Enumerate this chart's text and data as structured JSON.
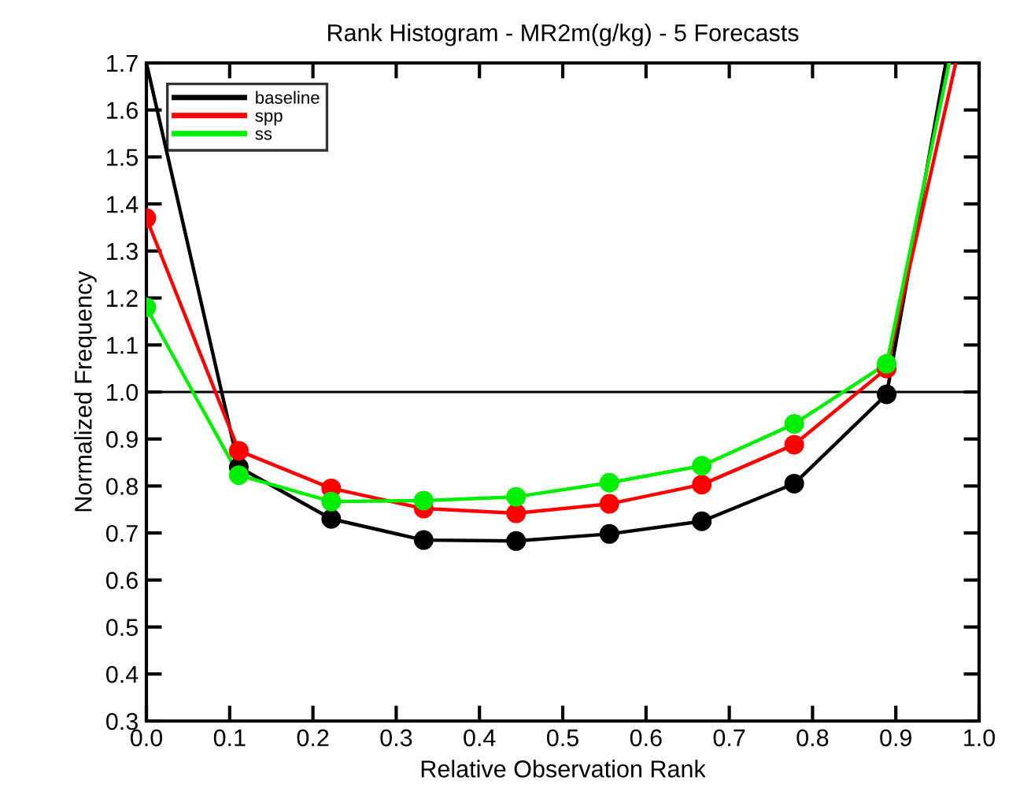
{
  "chart_data": {
    "type": "line",
    "title": "Rank Histogram - MR2m(g/kg) - 5 Forecasts",
    "xlabel": "Relative Observation Rank",
    "ylabel": "Normalized Frequency",
    "series": [
      {
        "name": "baseline",
        "color": "#000000",
        "x": [
          0.0,
          0.111,
          0.222,
          0.333,
          0.444,
          0.556,
          0.667,
          0.778,
          0.889,
          0.96
        ],
        "values": [
          1.7,
          0.84,
          0.73,
          0.685,
          0.683,
          0.698,
          0.725,
          0.805,
          0.995,
          1.7
        ]
      },
      {
        "name": "spp",
        "color": "#ff0000",
        "x": [
          0.0,
          0.111,
          0.222,
          0.333,
          0.444,
          0.556,
          0.667,
          0.778,
          0.889,
          0.972
        ],
        "values": [
          1.37,
          0.875,
          0.795,
          0.752,
          0.742,
          0.762,
          0.803,
          0.888,
          1.05,
          1.7
        ]
      },
      {
        "name": "ss",
        "color": "#00ee00",
        "x": [
          0.0,
          0.111,
          0.222,
          0.333,
          0.444,
          0.556,
          0.667,
          0.778,
          0.889,
          0.964
        ],
        "values": [
          1.18,
          0.823,
          0.767,
          0.769,
          0.777,
          0.807,
          0.843,
          0.932,
          1.06,
          1.7
        ]
      }
    ],
    "xlim": [
      0.0,
      1.0
    ],
    "xticks": [
      {
        "value": 0,
        "label": "0.0"
      },
      0.1,
      0.2,
      0.3,
      0.4,
      0.5,
      0.6,
      0.7,
      0.8,
      0.9,
      {
        "value": 1,
        "label": "1.0"
      }
    ],
    "ylim": [
      0.3,
      1.7
    ],
    "yticks": [
      0.3,
      0.4,
      0.5,
      0.6,
      0.7,
      0.8,
      0.9,
      {
        "value": 1,
        "label": "1.0"
      },
      1.1,
      1.2,
      1.3,
      1.4,
      1.5,
      1.6,
      1.7
    ],
    "ref_lines": [
      {
        "axis": "y",
        "value": 1.0,
        "color": "#000000"
      }
    ],
    "grid": false,
    "legend": "top left",
    "marker": "circle",
    "line_style": "solid"
  }
}
